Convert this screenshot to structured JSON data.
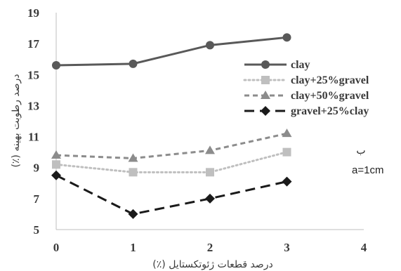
{
  "chart_data": {
    "type": "line",
    "title": "",
    "xlabel": "درصد قطعات ژئوتکستایل (٪)",
    "ylabel": "درصد رطوبت بهینه (٪)",
    "xlim": [
      0,
      4
    ],
    "ylim": [
      5,
      19
    ],
    "x_ticks": [
      0,
      1,
      2,
      3,
      4
    ],
    "y_ticks": [
      5,
      7,
      9,
      11,
      13,
      15,
      17,
      19
    ],
    "x": [
      0,
      1,
      2,
      3
    ],
    "grid": false,
    "legend_position": "right",
    "series": [
      {
        "name": "clay",
        "values": [
          15.6,
          15.7,
          16.9,
          17.4
        ],
        "color": "#595959",
        "dash": "solid",
        "marker": "circle"
      },
      {
        "name": "clay+25%gravel",
        "values": [
          9.2,
          8.7,
          8.7,
          10.0
        ],
        "color": "#bfbfbf",
        "dash": "dotted",
        "marker": "square"
      },
      {
        "name": "clay+50%gravel",
        "values": [
          9.8,
          9.6,
          10.1,
          11.2
        ],
        "color": "#8c8c8c",
        "dash": "dashed",
        "marker": "triangle"
      },
      {
        "name": "gravel+25%clay",
        "values": [
          8.5,
          6.0,
          7.0,
          8.1
        ],
        "color": "#1a1a1a",
        "dash": "longdash",
        "marker": "diamond"
      }
    ],
    "annotations": [
      "ب",
      "a=1cm"
    ]
  }
}
